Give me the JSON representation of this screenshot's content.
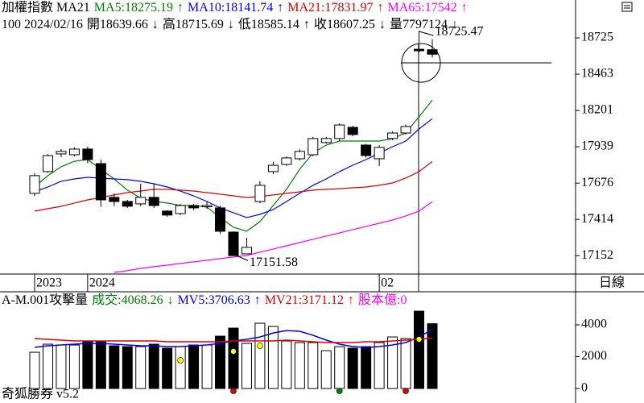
{
  "chart_data": [
    {
      "type": "candlestick",
      "title": "加權指數 MA21",
      "info": [
        "100 2024/02/16",
        "開18639.66",
        "↓",
        "高18715.69",
        "↓",
        "低18585.14",
        "↑",
        "收18607.25",
        "↓",
        "量7797124",
        "↓"
      ],
      "categories": [
        "2023",
        null,
        null,
        null,
        "2024",
        null,
        null,
        null,
        null,
        null,
        null,
        null,
        null,
        null,
        null,
        null,
        null,
        null,
        null,
        null,
        null,
        null,
        null,
        null,
        null,
        null,
        "02",
        null,
        null,
        null,
        null
      ],
      "open": [
        17602,
        17759,
        17887,
        17881,
        17922,
        17817,
        17573,
        17543,
        17526,
        17573,
        17474,
        17456,
        17514,
        17505,
        17497,
        17322,
        17165,
        17543,
        17759,
        17811,
        17852,
        17881,
        17969,
        17998,
        18079,
        17951,
        17852,
        17998,
        18038,
        18643,
        18639.66
      ],
      "high": [
        17747,
        17886,
        17922,
        17935,
        17940,
        17846,
        17602,
        17555,
        17672,
        17672,
        17480,
        17526,
        17526,
        17540,
        17514,
        17328,
        17281,
        17690,
        17830,
        17870,
        17920,
        18010,
        18010,
        18108,
        18090,
        17960,
        17950,
        18050,
        18100,
        18725.47,
        18715.69
      ],
      "low": [
        17584,
        17750,
        17864,
        17870,
        17820,
        17503,
        17509,
        17497,
        17509,
        17497,
        17433,
        17445,
        17480,
        17490,
        17310,
        17151.58,
        17170,
        17530,
        17740,
        17800,
        17840,
        17870,
        17960,
        17980,
        18015,
        17860,
        17800,
        17985,
        18027,
        18620,
        18585.14
      ],
      "close": [
        17730,
        17875,
        17905,
        17922,
        17846,
        17555,
        17543,
        17509,
        17573,
        17514,
        17445,
        17514,
        17497,
        17514,
        17328,
        17152,
        17212,
        17660,
        17805,
        17858,
        17905,
        17998,
        17998,
        18096,
        18027,
        17875,
        17934,
        18038,
        18085,
        18632,
        18607.25
      ],
      "up_color": "#ffffff",
      "down_color": "#000000",
      "high_label": "18725.47",
      "low_label": "17151.58",
      "series": [
        {
          "name": "MA5:18275.19",
          "trend": "↑",
          "color": "#008000",
          "values": [
            17648,
            17730,
            17794,
            17834,
            17846,
            17776,
            17706,
            17625,
            17567,
            17543,
            17532,
            17514,
            17514,
            17503,
            17427,
            17357,
            17328,
            17398,
            17514,
            17631,
            17776,
            17893,
            17951,
            17980,
            17980,
            17980,
            17980,
            17997,
            18038,
            18155,
            18275.19
          ]
        },
        {
          "name": "MA10:18141.74",
          "trend": "↑",
          "color": "#0000ff",
          "values": [
            17613,
            17648,
            17689,
            17706,
            17718,
            17712,
            17706,
            17701,
            17689,
            17671,
            17648,
            17619,
            17584,
            17543,
            17497,
            17462,
            17427,
            17450,
            17485,
            17543,
            17602,
            17660,
            17706,
            17759,
            17805,
            17846,
            17893,
            17939,
            17980,
            18067,
            18141.74
          ]
        },
        {
          "name": "MA21:17831.97",
          "trend": "↑",
          "color": "#e00000",
          "values": [
            17473,
            17491,
            17508,
            17532,
            17555,
            17572,
            17590,
            17607,
            17619,
            17631,
            17631,
            17625,
            17619,
            17607,
            17596,
            17584,
            17572,
            17578,
            17590,
            17602,
            17613,
            17625,
            17631,
            17636,
            17642,
            17648,
            17660,
            17677,
            17712,
            17759,
            17831.97
          ]
        },
        {
          "name": "MA65:17542",
          "trend": "↑",
          "color": "#ff00ff",
          "values": [
            null,
            null,
            null,
            null,
            null,
            null,
            17031,
            17043,
            17060,
            17072,
            17083,
            17095,
            17107,
            17118,
            17130,
            17142,
            17153,
            17177,
            17200,
            17223,
            17246,
            17270,
            17293,
            17316,
            17340,
            17363,
            17386,
            17409,
            17439,
            17473,
            17542
          ]
        }
      ],
      "ylim": [
        17019,
        18999
      ],
      "yticks": [
        17152,
        17414,
        17676,
        17939,
        18201,
        18463,
        18725
      ]
    },
    {
      "type": "bar",
      "title": "A-M.001攻擊量",
      "volume_label": "成交:4068.26",
      "volume_trend": "↓",
      "volume_color": "#008000",
      "values": [
        2277,
        2783,
        2732,
        2732,
        2935,
        2935,
        2682,
        2631,
        2631,
        2783,
        2530,
        2631,
        2732,
        2732,
        3289,
        3795,
        2834,
        4099,
        3896,
        2985,
        2884,
        2884,
        2378,
        2631,
        2530,
        2631,
        2884,
        3238,
        3137,
        4858,
        4068.26
      ],
      "series": [
        {
          "name": "MV5:3706.63",
          "trend": "↑",
          "color": "#0000ff",
          "values": [
            2581,
            2682,
            2732,
            2783,
            2834,
            2834,
            2783,
            2732,
            2682,
            2682,
            2631,
            2631,
            2682,
            2732,
            2834,
            2985,
            3087,
            3238,
            3491,
            3643,
            3593,
            3340,
            3036,
            2783,
            2631,
            2581,
            2631,
            2732,
            2884,
            3238,
            3706.63
          ]
        },
        {
          "name": "MV21:3171.12",
          "trend": "↑",
          "color": "#e00000",
          "values": [
            3137,
            3087,
            3036,
            2985,
            2985,
            2985,
            2985,
            2985,
            2985,
            2985,
            2935,
            2935,
            2935,
            2935,
            2935,
            2985,
            2985,
            2985,
            2985,
            3036,
            2985,
            2935,
            2884,
            2884,
            2884,
            2935,
            2935,
            2985,
            3036,
            3087,
            3171.12
          ]
        }
      ],
      "extra": "股本億:0",
      "extra_color": "#ff00ff",
      "markers": [
        {
          "color": "#ffff00",
          "values": [
            null,
            null,
            null,
            null,
            null,
            null,
            null,
            null,
            null,
            null,
            null,
            1771,
            null,
            null,
            null,
            2328,
            null,
            2682,
            null,
            null,
            null,
            null,
            null,
            null,
            null,
            null,
            null,
            null,
            null,
            3087,
            null
          ]
        },
        {
          "color": "#e00000",
          "values": [
            null,
            null,
            null,
            null,
            null,
            null,
            null,
            null,
            null,
            null,
            null,
            null,
            null,
            null,
            null,
            -152,
            null,
            null,
            null,
            null,
            null,
            null,
            null,
            null,
            null,
            null,
            null,
            null,
            -152,
            null,
            null
          ]
        },
        {
          "color": "#008000",
          "values": [
            null,
            null,
            null,
            null,
            null,
            null,
            null,
            null,
            null,
            null,
            null,
            null,
            null,
            null,
            null,
            null,
            null,
            null,
            null,
            null,
            null,
            null,
            null,
            -152,
            null,
            null,
            null,
            null,
            null,
            null,
            null
          ]
        }
      ],
      "ylim": [
        0,
        6076
      ],
      "yticks": [
        0,
        2000,
        4000
      ]
    }
  ],
  "period": "日線",
  "footer": "奇狐勝券 v5.2"
}
